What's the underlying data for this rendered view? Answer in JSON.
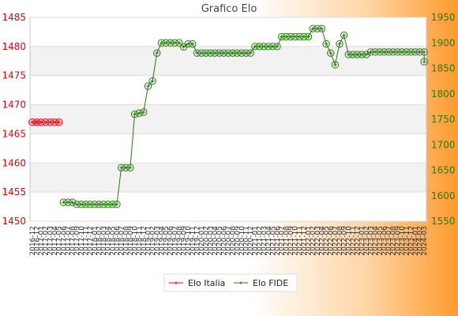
{
  "chart_data": {
    "type": "line",
    "title": "Grafico Elo",
    "y_left": {
      "min": 1450,
      "max": 1485,
      "step": 5,
      "color": "#e8000b"
    },
    "y_right": {
      "min": 1550,
      "max": 1950,
      "step": 50,
      "color": "#2a7a10"
    },
    "series": [
      {
        "name": "Elo Italia",
        "axis": "left",
        "color": "#e8000b",
        "marker": "#e8000b",
        "x": [
          0,
          1,
          2,
          3,
          4,
          5,
          6
        ],
        "values": [
          1467,
          1467,
          1467,
          1467,
          1467,
          1467,
          1467
        ]
      },
      {
        "name": "Elo FIDE",
        "axis": "right",
        "color": "#2a7a10",
        "marker": "#2a7a10",
        "x": [
          7,
          8,
          9,
          10,
          11,
          12,
          13,
          14,
          15,
          16,
          17,
          18,
          19,
          20,
          21,
          22,
          23,
          24,
          25,
          26,
          27,
          28,
          29,
          30,
          31,
          32,
          33,
          34,
          35,
          36,
          37,
          38,
          39,
          40,
          41,
          42,
          43,
          44,
          45,
          46,
          47,
          48,
          49,
          50,
          51,
          52,
          53,
          54,
          55,
          56,
          57,
          58,
          59,
          60,
          61,
          62,
          63,
          64,
          65,
          66,
          67,
          68,
          69,
          70,
          71,
          72,
          73,
          74,
          75,
          76,
          77,
          78,
          79,
          80,
          81,
          82,
          83,
          84,
          85,
          86,
          87,
          88,
          88
        ],
        "values": [
          1587,
          1587,
          1587,
          1583,
          1583,
          1583,
          1583,
          1583,
          1583,
          1583,
          1583,
          1583,
          1583,
          1655,
          1655,
          1655,
          1760,
          1762,
          1764,
          1815,
          1825,
          1880,
          1900,
          1900,
          1900,
          1900,
          1900,
          1892,
          1898,
          1898,
          1880,
          1880,
          1880,
          1880,
          1880,
          1880,
          1880,
          1880,
          1880,
          1880,
          1880,
          1880,
          1880,
          1893,
          1893,
          1893,
          1893,
          1893,
          1893,
          1912,
          1912,
          1912,
          1912,
          1912,
          1912,
          1912,
          1928,
          1928,
          1928,
          1898,
          1880,
          1857,
          1898,
          1915,
          1877,
          1877,
          1877,
          1877,
          1877,
          1882,
          1882,
          1882,
          1882,
          1882,
          1882,
          1882,
          1882,
          1882,
          1882,
          1882,
          1882,
          1882,
          1863
        ]
      }
    ],
    "x_labels": [
      "2016-12",
      "2016-12",
      "2017-01",
      "2017-02",
      "2017-03",
      "2017-04",
      "2017-05",
      "2017-06",
      "2017-07",
      "2017-08",
      "2017-09",
      "2017-10",
      "2017-11",
      "2017-12",
      "2018-01",
      "2018-02",
      "2018-03",
      "2018-04",
      "2018-05",
      "2018-06",
      "2018-07",
      "2018-08",
      "2018-09",
      "2018-10",
      "2018-11",
      "2018-12",
      "2019-01",
      "2019-02",
      "2019-03",
      "2019-04",
      "2019-05",
      "2019-06",
      "2019-07",
      "2019-08",
      "2019-09",
      "2019-10",
      "2019-11",
      "2019-12",
      "2020-01",
      "2020-02",
      "2020-03",
      "2020-04",
      "2020-05",
      "2020-06",
      "2020-07",
      "2020-08",
      "2020-09",
      "2020-10",
      "2020-11",
      "2020-12",
      "2021-01",
      "2021-02",
      "2021-03",
      "2021-04",
      "2021-05",
      "2021-06",
      "2021-07",
      "2021-08",
      "2021-09",
      "2021-10",
      "2021-11",
      "2021-12",
      "2022-01",
      "2022-02",
      "2022-03",
      "2022-04",
      "2022-05",
      "2022-06",
      "2022-07",
      "2022-08",
      "2022-09",
      "2022-10",
      "2022-11",
      "2022-12",
      "2023-01",
      "2023-02",
      "2023-03",
      "2023-04",
      "2023-05",
      "2023-06",
      "2023-07",
      "2023-08",
      "2023-09",
      "2023-10",
      "2023-11",
      "2023-12",
      "2024-01",
      "2024-02",
      "2024-03"
    ],
    "legend": {
      "position": "bottom-center"
    }
  }
}
